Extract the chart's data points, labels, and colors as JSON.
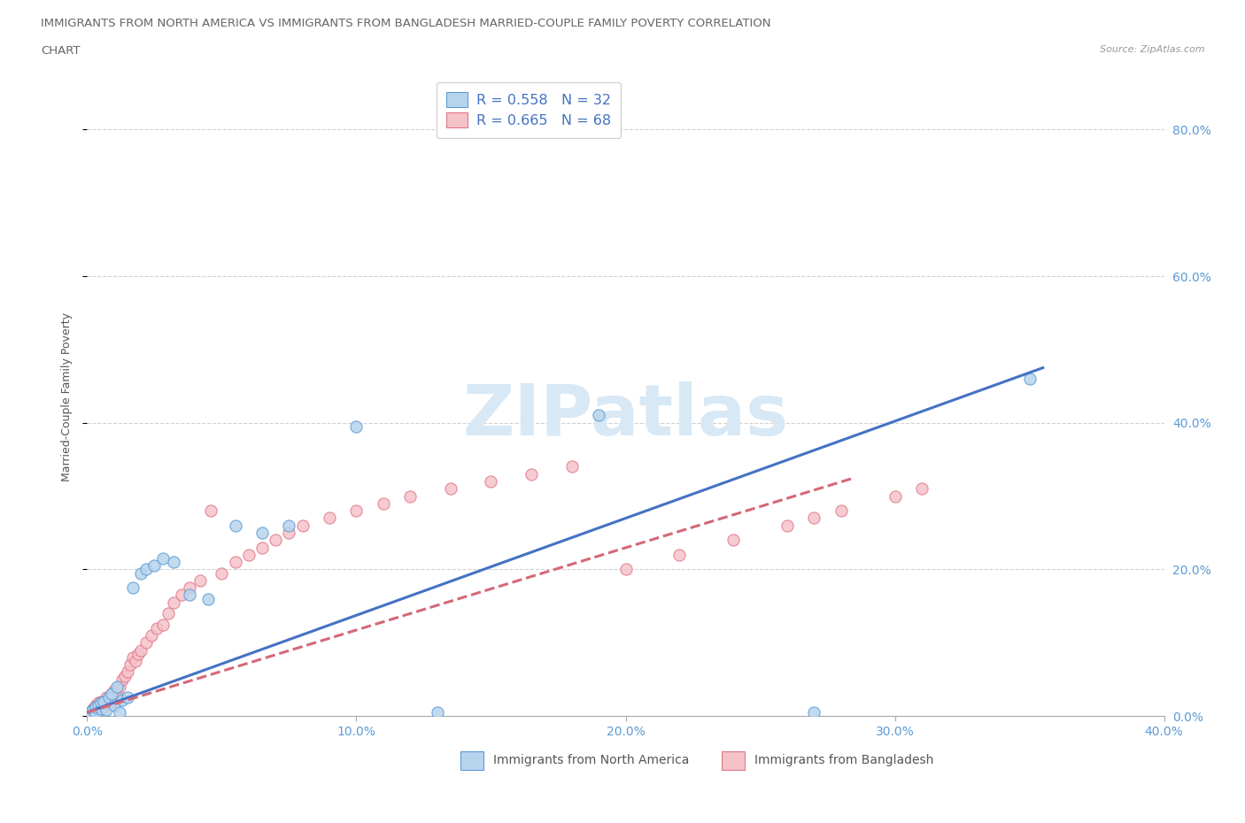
{
  "title_line1": "IMMIGRANTS FROM NORTH AMERICA VS IMMIGRANTS FROM BANGLADESH MARRIED-COUPLE FAMILY POVERTY CORRELATION",
  "title_line2": "CHART",
  "source": "Source: ZipAtlas.com",
  "xlim": [
    0.0,
    0.4
  ],
  "ylim": [
    0.0,
    0.87
  ],
  "x_ticks": [
    0.0,
    0.1,
    0.2,
    0.3,
    0.4
  ],
  "y_ticks": [
    0.0,
    0.2,
    0.4,
    0.6,
    0.8
  ],
  "north_america_fill": "#b8d4ed",
  "north_america_edge": "#5b9bd5",
  "bangladesh_fill": "#f5c2ca",
  "bangladesh_edge": "#e07888",
  "trend_na_color": "#4472c4",
  "trend_bd_color": "#d46878",
  "watermark_color": "#d8e8f5",
  "legend_text_color": "#4472c4",
  "ylabel": "Married-Couple Family Poverty",
  "tick_color": "#5b9bd5",
  "grid_color": "#cccccc",
  "na_x": [
    0.001,
    0.002,
    0.003,
    0.003,
    0.004,
    0.005,
    0.005,
    0.006,
    0.007,
    0.008,
    0.009,
    0.01,
    0.011,
    0.012,
    0.013,
    0.015,
    0.017,
    0.02,
    0.022,
    0.025,
    0.028,
    0.032,
    0.038,
    0.045,
    0.055,
    0.065,
    0.075,
    0.1,
    0.13,
    0.19,
    0.27,
    0.35
  ],
  "na_y": [
    0.005,
    0.008,
    0.002,
    0.012,
    0.015,
    0.01,
    0.018,
    0.02,
    0.008,
    0.025,
    0.03,
    0.015,
    0.04,
    0.005,
    0.022,
    0.025,
    0.175,
    0.195,
    0.2,
    0.205,
    0.215,
    0.21,
    0.165,
    0.16,
    0.26,
    0.25,
    0.26,
    0.395,
    0.005,
    0.41,
    0.005,
    0.46
  ],
  "bd_x": [
    0.001,
    0.001,
    0.002,
    0.002,
    0.002,
    0.003,
    0.003,
    0.003,
    0.004,
    0.004,
    0.004,
    0.005,
    0.005,
    0.005,
    0.006,
    0.006,
    0.007,
    0.007,
    0.007,
    0.008,
    0.008,
    0.009,
    0.009,
    0.01,
    0.01,
    0.011,
    0.012,
    0.013,
    0.014,
    0.015,
    0.016,
    0.017,
    0.018,
    0.019,
    0.02,
    0.022,
    0.024,
    0.026,
    0.028,
    0.03,
    0.032,
    0.035,
    0.038,
    0.042,
    0.046,
    0.05,
    0.055,
    0.06,
    0.065,
    0.07,
    0.075,
    0.08,
    0.09,
    0.1,
    0.11,
    0.12,
    0.135,
    0.15,
    0.165,
    0.18,
    0.2,
    0.22,
    0.24,
    0.26,
    0.27,
    0.28,
    0.3,
    0.31
  ],
  "bd_y": [
    0.002,
    0.005,
    0.004,
    0.008,
    0.01,
    0.006,
    0.01,
    0.015,
    0.008,
    0.012,
    0.018,
    0.01,
    0.015,
    0.02,
    0.012,
    0.018,
    0.015,
    0.02,
    0.025,
    0.018,
    0.025,
    0.02,
    0.03,
    0.025,
    0.035,
    0.03,
    0.04,
    0.05,
    0.055,
    0.06,
    0.07,
    0.08,
    0.075,
    0.085,
    0.09,
    0.1,
    0.11,
    0.12,
    0.125,
    0.14,
    0.155,
    0.165,
    0.175,
    0.185,
    0.28,
    0.195,
    0.21,
    0.22,
    0.23,
    0.24,
    0.25,
    0.26,
    0.27,
    0.28,
    0.29,
    0.3,
    0.31,
    0.32,
    0.33,
    0.34,
    0.2,
    0.22,
    0.24,
    0.26,
    0.27,
    0.28,
    0.3,
    0.31
  ],
  "na_trend_x0": 0.0,
  "na_trend_x1": 0.355,
  "na_trend_y0": 0.005,
  "na_trend_y1": 0.475,
  "bd_trend_x0": 0.0,
  "bd_trend_x1": 0.285,
  "bd_trend_y0": 0.005,
  "bd_trend_y1": 0.325,
  "legend_R_na": "0.558",
  "legend_N_na": "32",
  "legend_R_bd": "0.665",
  "legend_N_bd": "68",
  "marker_size": 90
}
